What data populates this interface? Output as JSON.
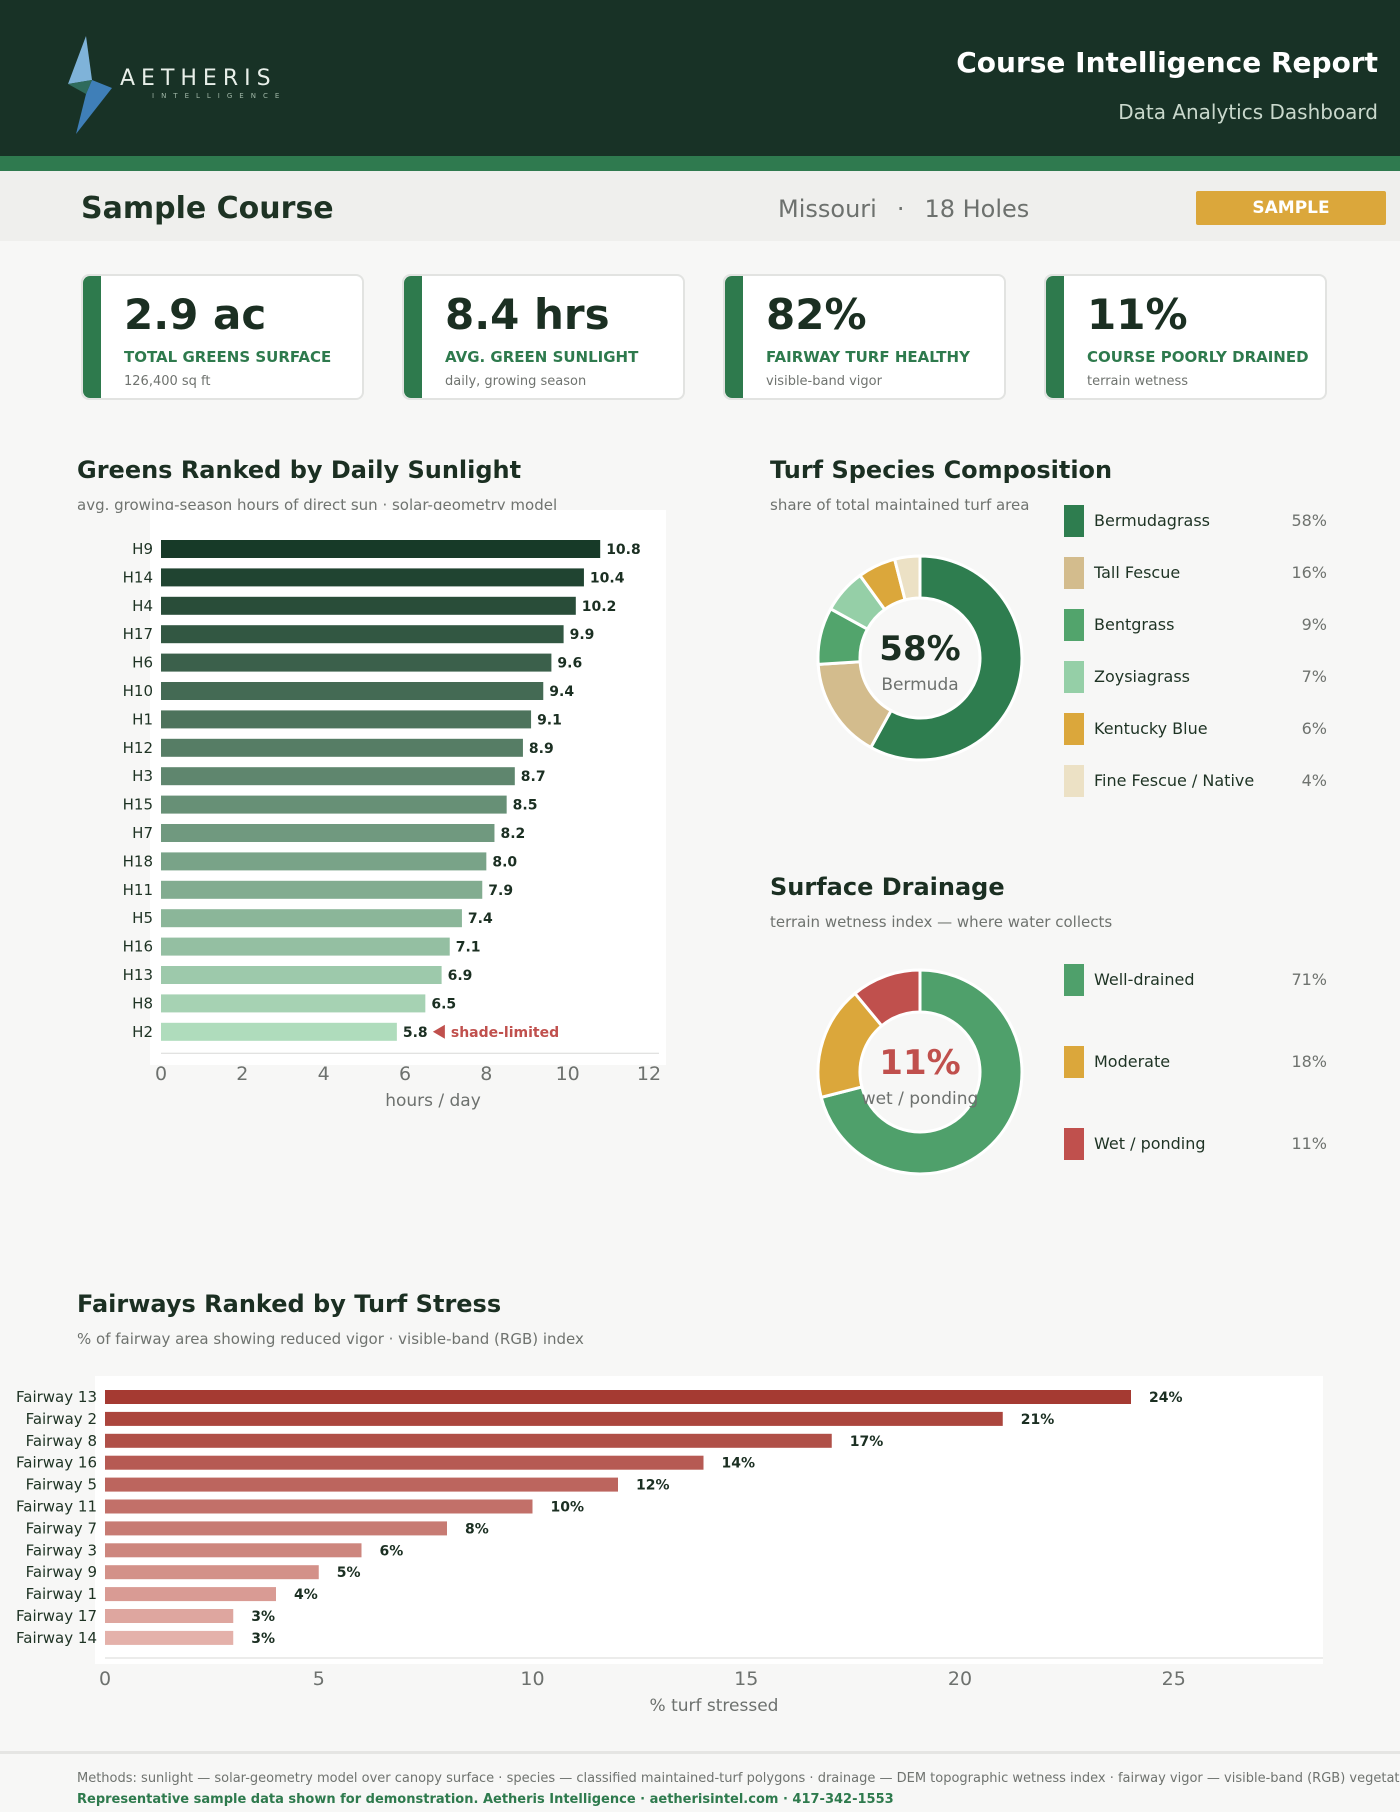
{
  "brand": {
    "logo_name": "AETHERIS",
    "logo_tagline": "INTELLIGENCE",
    "report_title": "Course Intelligence Report",
    "report_subtitle": "Data Analytics Dashboard"
  },
  "course": {
    "name": "Sample Course",
    "state": "Missouri",
    "separator": "·",
    "holes": "18 Holes",
    "badge": "SAMPLE"
  },
  "kpis": [
    {
      "value": "2.9 ac",
      "label": "TOTAL GREENS SURFACE",
      "note": "126,400 sq ft"
    },
    {
      "value": "8.4 hrs",
      "label": "AVG. GREEN SUNLIGHT",
      "note": "daily, growing season"
    },
    {
      "value": "82%",
      "label": "FAIRWAY TURF HEALTHY",
      "note": "visible-band vigor"
    },
    {
      "value": "11%",
      "label": "COURSE POORLY DRAINED",
      "note": "terrain wetness"
    }
  ],
  "colors": {
    "dark_green": "#183226",
    "accent_green": "#2e7a4d",
    "gold": "#dba73b",
    "red": "#c0504d"
  },
  "chart_data": [
    {
      "type": "bar",
      "orientation": "horizontal",
      "title": "Greens Ranked by Daily Sunlight",
      "subtitle": "avg. growing-season hours of direct sun · solar-geometry model",
      "xlabel": "hours / day",
      "xlim": [
        0,
        12
      ],
      "xticks": [
        "0",
        "2",
        "4",
        "6",
        "8",
        "10",
        "12"
      ],
      "categories": [
        "H9",
        "H14",
        "H4",
        "H17",
        "H6",
        "H10",
        "H1",
        "H12",
        "H3",
        "H15",
        "H7",
        "H18",
        "H11",
        "H5",
        "H16",
        "H13",
        "H8",
        "H2"
      ],
      "values": [
        10.8,
        10.4,
        10.2,
        9.9,
        9.6,
        9.4,
        9.1,
        8.9,
        8.7,
        8.5,
        8.2,
        8.0,
        7.9,
        7.4,
        7.1,
        6.9,
        6.5,
        5.8
      ],
      "value_labels": [
        "10.8",
        "10.4",
        "10.2",
        "9.9",
        "9.6",
        "9.4",
        "9.1",
        "8.9",
        "8.7",
        "8.5",
        "8.2",
        "8.0",
        "7.9",
        "7.4",
        "7.1",
        "6.9",
        "6.5",
        "5.8"
      ],
      "annotation": {
        "category": "H2",
        "text": "shade-limited"
      },
      "grid": false
    },
    {
      "type": "pie",
      "title": "Turf Species Composition",
      "subtitle": "share of total maintained turf area",
      "center_value": "58%",
      "center_label": "Bermuda",
      "slices": [
        {
          "label": "Bermudagrass",
          "value": 58,
          "pct": "58%",
          "color": "#2e7d4f"
        },
        {
          "label": "Tall Fescue",
          "value": 16,
          "pct": "16%",
          "color": "#d3bc8d"
        },
        {
          "label": "Bentgrass",
          "value": 9,
          "pct": "9%",
          "color": "#52a46c"
        },
        {
          "label": "Zoysiagrass",
          "value": 7,
          "pct": "7%",
          "color": "#95cfa7"
        },
        {
          "label": "Kentucky Blue",
          "value": 6,
          "pct": "6%",
          "color": "#dba73b"
        },
        {
          "label": "Fine Fescue / Native",
          "value": 4,
          "pct": "4%",
          "color": "#ece1c5"
        }
      ]
    },
    {
      "type": "pie",
      "title": "Surface Drainage",
      "subtitle": "terrain wetness index — where water collects",
      "center_value": "11%",
      "center_label": "wet / ponding",
      "slices": [
        {
          "label": "Well-drained",
          "value": 71,
          "pct": "71%",
          "color": "#4fa06b"
        },
        {
          "label": "Moderate",
          "value": 18,
          "pct": "18%",
          "color": "#dba73b"
        },
        {
          "label": "Wet / ponding",
          "value": 11,
          "pct": "11%",
          "color": "#c0504d"
        }
      ]
    },
    {
      "type": "bar",
      "orientation": "horizontal",
      "title": "Fairways Ranked by Turf Stress",
      "subtitle": "% of fairway area showing reduced vigor · visible-band (RGB) index",
      "xlabel": "% turf stressed",
      "xlim": [
        0,
        28
      ],
      "xticks": [
        "0",
        "5",
        "10",
        "15",
        "20",
        "25"
      ],
      "categories": [
        "Fairway 13",
        "Fairway 2",
        "Fairway 8",
        "Fairway 16",
        "Fairway 5",
        "Fairway 11",
        "Fairway 7",
        "Fairway 3",
        "Fairway 9",
        "Fairway 1",
        "Fairway 17",
        "Fairway 14"
      ],
      "values": [
        24,
        21,
        17,
        14,
        12,
        10,
        8,
        6,
        5,
        4,
        3,
        3
      ],
      "value_labels": [
        "24%",
        "21%",
        "17%",
        "14%",
        "12%",
        "10%",
        "8%",
        "6%",
        "5%",
        "4%",
        "3%",
        "3%"
      ],
      "grid": false
    }
  ],
  "footer": {
    "methods": "Methods: sunlight — solar-geometry model over canopy surface · species — classified maintained-turf polygons · drainage — DEM topographic wetness index · fairway vigor — visible-band (RGB) vegetation index.",
    "contact": "Representative sample data shown for demonstration. Aetheris Intelligence · aetherisintel.com · 417-342-1553"
  }
}
